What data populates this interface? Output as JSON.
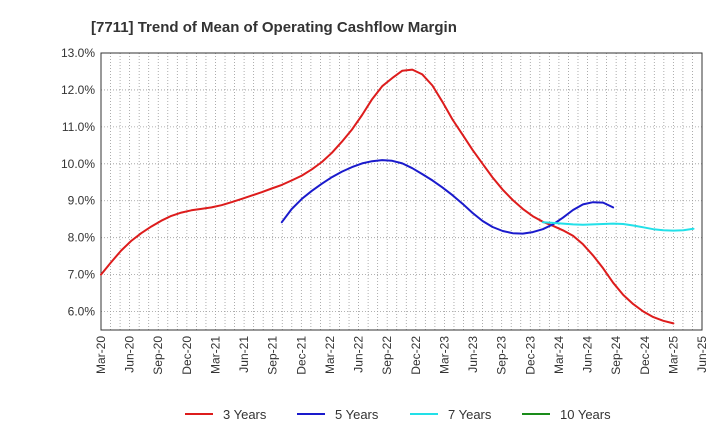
{
  "chart_data": {
    "type": "line",
    "title": "[7711]  Trend of Mean of Operating Cashflow Margin",
    "xlabel": "",
    "ylabel": "",
    "x_ticks": [
      "Mar-20",
      "Jun-20",
      "Sep-20",
      "Dec-20",
      "Mar-21",
      "Jun-21",
      "Sep-21",
      "Dec-21",
      "Mar-22",
      "Jun-22",
      "Sep-22",
      "Dec-22",
      "Mar-23",
      "Jun-23",
      "Sep-23",
      "Dec-23",
      "Mar-24",
      "Jun-24",
      "Sep-24",
      "Dec-24",
      "Mar-25",
      "Jun-25"
    ],
    "y_ticks": [
      "6.0%",
      "7.0%",
      "8.0%",
      "9.0%",
      "10.0%",
      "11.0%",
      "12.0%",
      "13.0%"
    ],
    "ylim": [
      5.5,
      13.0
    ],
    "grid": true,
    "legend_position": "bottom",
    "series": [
      {
        "name": "3 Years",
        "color": "#dd1c1c",
        "start_index": 0,
        "values": [
          7.0,
          7.33,
          7.65,
          7.91,
          8.12,
          8.3,
          8.46,
          8.59,
          8.68,
          8.74,
          8.78,
          8.82,
          8.88,
          8.96,
          9.05,
          9.14,
          9.23,
          9.33,
          9.43,
          9.55,
          9.68,
          9.85,
          10.05,
          10.3,
          10.6,
          10.93,
          11.32,
          11.75,
          12.1,
          12.32,
          12.52,
          12.55,
          12.42,
          12.12,
          11.68,
          11.2,
          10.79,
          10.38,
          10.0,
          9.63,
          9.3,
          9.02,
          8.78,
          8.58,
          8.43,
          8.32,
          8.2,
          8.05,
          7.82,
          7.52,
          7.17,
          6.78,
          6.45,
          6.2,
          6.0,
          5.85,
          5.75,
          5.68
        ]
      },
      {
        "name": "5 Years",
        "color": "#1a1acc",
        "start_index": 18,
        "values": [
          8.42,
          8.78,
          9.05,
          9.27,
          9.46,
          9.64,
          9.79,
          9.91,
          10.01,
          10.07,
          10.1,
          10.08,
          10.01,
          9.88,
          9.72,
          9.55,
          9.36,
          9.15,
          8.92,
          8.67,
          8.45,
          8.29,
          8.18,
          8.12,
          8.11,
          8.15,
          8.23,
          8.36,
          8.54,
          8.75,
          8.9,
          8.96,
          8.95,
          8.82
        ]
      },
      {
        "name": "7 Years",
        "color": "#22e0e8",
        "start_index": 44,
        "values": [
          8.42,
          8.4,
          8.38,
          8.36,
          8.35,
          8.36,
          8.37,
          8.38,
          8.37,
          8.33,
          8.28,
          8.23,
          8.2,
          8.19,
          8.2,
          8.24
        ]
      },
      {
        "name": "10 Years",
        "color": "#1a8c1a",
        "start_index": 0,
        "values": []
      }
    ]
  }
}
